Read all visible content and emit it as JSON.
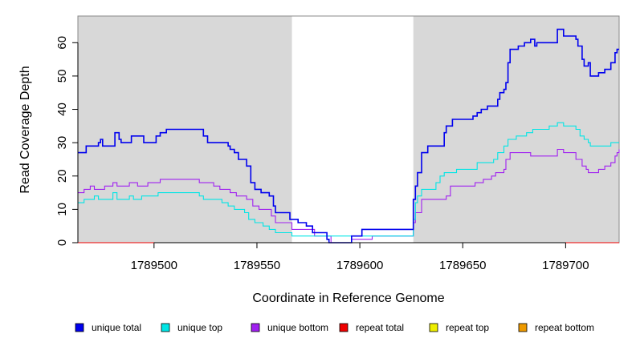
{
  "chart_data": {
    "type": "line",
    "xlabel": "Coordinate in Reference Genome",
    "ylabel": "Read Coverage Depth",
    "xlim": [
      1789463,
      1789726
    ],
    "ylim": [
      0,
      68
    ],
    "xticks": [
      1789500,
      1789550,
      1789600,
      1789650,
      1789700
    ],
    "yticks": [
      0,
      10,
      20,
      30,
      40,
      50,
      60
    ],
    "shaded_regions": [
      [
        1789463,
        1789567
      ],
      [
        1789626,
        1789726
      ]
    ],
    "shade_color": "#d8d8d8",
    "series": [
      {
        "name": "unique total",
        "color": "#0000ee",
        "points": [
          [
            1789463,
            27
          ],
          [
            1789467,
            29
          ],
          [
            1789473,
            30
          ],
          [
            1789474,
            31
          ],
          [
            1789475,
            29
          ],
          [
            1789481,
            33
          ],
          [
            1789483,
            31
          ],
          [
            1789484,
            30
          ],
          [
            1789489,
            32
          ],
          [
            1789495,
            30
          ],
          [
            1789501,
            32
          ],
          [
            1789503,
            33
          ],
          [
            1789506,
            34
          ],
          [
            1789522,
            34
          ],
          [
            1789524,
            32
          ],
          [
            1789526,
            30
          ],
          [
            1789536,
            29
          ],
          [
            1789537,
            28
          ],
          [
            1789539,
            27
          ],
          [
            1789541,
            25
          ],
          [
            1789545,
            23
          ],
          [
            1789547,
            18
          ],
          [
            1789549,
            16
          ],
          [
            1789552,
            15
          ],
          [
            1789556,
            14
          ],
          [
            1789558,
            11
          ],
          [
            1789559,
            9
          ],
          [
            1789566,
            7
          ],
          [
            1789570,
            6
          ],
          [
            1789574,
            5
          ],
          [
            1789577,
            3
          ],
          [
            1789580,
            3
          ],
          [
            1789584,
            1
          ],
          [
            1789585,
            0
          ],
          [
            1789593,
            0
          ],
          [
            1789596,
            2
          ],
          [
            1789601,
            4
          ],
          [
            1789620,
            4
          ],
          [
            1789626,
            13
          ],
          [
            1789627,
            17
          ],
          [
            1789628,
            21
          ],
          [
            1789630,
            27
          ],
          [
            1789633,
            29
          ],
          [
            1789641,
            33
          ],
          [
            1789642,
            35
          ],
          [
            1789645,
            37
          ],
          [
            1789655,
            38
          ],
          [
            1789657,
            39
          ],
          [
            1789659,
            40
          ],
          [
            1789662,
            41
          ],
          [
            1789667,
            43
          ],
          [
            1789668,
            45
          ],
          [
            1789670,
            46
          ],
          [
            1789671,
            48
          ],
          [
            1789672,
            54
          ],
          [
            1789673,
            58
          ],
          [
            1789677,
            59
          ],
          [
            1789680,
            60
          ],
          [
            1789683,
            61
          ],
          [
            1789685,
            59
          ],
          [
            1789686,
            60
          ],
          [
            1789696,
            64
          ],
          [
            1789699,
            62
          ],
          [
            1789705,
            61
          ],
          [
            1789706,
            59
          ],
          [
            1789708,
            55
          ],
          [
            1789709,
            53
          ],
          [
            1789711,
            54
          ],
          [
            1789712,
            50
          ],
          [
            1789716,
            51
          ],
          [
            1789719,
            52
          ],
          [
            1789722,
            54
          ],
          [
            1789724,
            57
          ],
          [
            1789725,
            58
          ],
          [
            1789726,
            58
          ]
        ]
      },
      {
        "name": "unique top",
        "color": "#00e5e5",
        "points": [
          [
            1789463,
            12
          ],
          [
            1789466,
            13
          ],
          [
            1789471,
            14
          ],
          [
            1789473,
            13
          ],
          [
            1789478,
            13
          ],
          [
            1789480,
            15
          ],
          [
            1789482,
            13
          ],
          [
            1789488,
            14
          ],
          [
            1789490,
            13
          ],
          [
            1789494,
            14
          ],
          [
            1789497,
            14
          ],
          [
            1789499,
            14
          ],
          [
            1789502,
            15
          ],
          [
            1789518,
            15
          ],
          [
            1789522,
            14
          ],
          [
            1789524,
            13
          ],
          [
            1789531,
            13
          ],
          [
            1789533,
            12
          ],
          [
            1789536,
            11
          ],
          [
            1789539,
            10
          ],
          [
            1789544,
            9
          ],
          [
            1789546,
            7
          ],
          [
            1789549,
            6
          ],
          [
            1789553,
            5
          ],
          [
            1789556,
            4
          ],
          [
            1789559,
            3
          ],
          [
            1789565,
            3
          ],
          [
            1789567,
            2
          ],
          [
            1789590,
            2
          ],
          [
            1789594,
            2
          ],
          [
            1789626,
            7
          ],
          [
            1789627,
            12
          ],
          [
            1789628,
            14
          ],
          [
            1789630,
            16
          ],
          [
            1789637,
            18
          ],
          [
            1789639,
            20
          ],
          [
            1789641,
            21
          ],
          [
            1789647,
            22
          ],
          [
            1789657,
            24
          ],
          [
            1789665,
            25
          ],
          [
            1789667,
            27
          ],
          [
            1789670,
            29
          ],
          [
            1789672,
            31
          ],
          [
            1789676,
            32
          ],
          [
            1789678,
            32
          ],
          [
            1789681,
            33
          ],
          [
            1789684,
            34
          ],
          [
            1789690,
            34
          ],
          [
            1789692,
            35
          ],
          [
            1789696,
            36
          ],
          [
            1789699,
            35
          ],
          [
            1789705,
            34
          ],
          [
            1789707,
            32
          ],
          [
            1789709,
            31
          ],
          [
            1789711,
            30
          ],
          [
            1789712,
            29
          ],
          [
            1789718,
            29
          ],
          [
            1789722,
            30
          ],
          [
            1789726,
            30
          ]
        ]
      },
      {
        "name": "unique bottom",
        "color": "#a020f0",
        "points": [
          [
            1789463,
            15
          ],
          [
            1789466,
            16
          ],
          [
            1789469,
            17
          ],
          [
            1789471,
            16
          ],
          [
            1789476,
            17
          ],
          [
            1789478,
            17
          ],
          [
            1789480,
            18
          ],
          [
            1789482,
            17
          ],
          [
            1789488,
            18
          ],
          [
            1789492,
            17
          ],
          [
            1789494,
            17
          ],
          [
            1789497,
            18
          ],
          [
            1789499,
            18
          ],
          [
            1789503,
            19
          ],
          [
            1789520,
            19
          ],
          [
            1789522,
            18
          ],
          [
            1789526,
            18
          ],
          [
            1789529,
            17
          ],
          [
            1789532,
            16
          ],
          [
            1789537,
            15
          ],
          [
            1789540,
            14
          ],
          [
            1789545,
            13
          ],
          [
            1789548,
            11
          ],
          [
            1789551,
            10
          ],
          [
            1789554,
            10
          ],
          [
            1789557,
            8
          ],
          [
            1789559,
            6
          ],
          [
            1789565,
            6
          ],
          [
            1789567,
            4
          ],
          [
            1789575,
            4
          ],
          [
            1789578,
            2
          ],
          [
            1789584,
            2
          ],
          [
            1789586,
            0
          ],
          [
            1789593,
            0
          ],
          [
            1789596,
            1
          ],
          [
            1789606,
            2
          ],
          [
            1789626,
            6
          ],
          [
            1789627,
            9
          ],
          [
            1789630,
            13
          ],
          [
            1789642,
            14
          ],
          [
            1789644,
            17
          ],
          [
            1789656,
            18
          ],
          [
            1789660,
            19
          ],
          [
            1789664,
            20
          ],
          [
            1789666,
            21
          ],
          [
            1789670,
            22
          ],
          [
            1789671,
            25
          ],
          [
            1789673,
            27
          ],
          [
            1789683,
            26
          ],
          [
            1789685,
            26
          ],
          [
            1789690,
            26
          ],
          [
            1789696,
            28
          ],
          [
            1789699,
            27
          ],
          [
            1789705,
            25
          ],
          [
            1789708,
            23
          ],
          [
            1789710,
            22
          ],
          [
            1789711,
            21
          ],
          [
            1789716,
            22
          ],
          [
            1789719,
            23
          ],
          [
            1789722,
            24
          ],
          [
            1789724,
            26
          ],
          [
            1789725,
            27
          ],
          [
            1789726,
            28
          ]
        ]
      },
      {
        "name": "repeat total",
        "color": "#ee0000",
        "points": [
          [
            1789463,
            0
          ],
          [
            1789726,
            0
          ]
        ]
      },
      {
        "name": "repeat top",
        "color": "#eeee00",
        "points": [
          [
            1789463,
            0
          ],
          [
            1789726,
            0
          ]
        ]
      },
      {
        "name": "repeat bottom",
        "color": "#ee9a00",
        "points": [
          [
            1789463,
            0
          ],
          [
            1789726,
            0
          ]
        ]
      }
    ],
    "legend": [
      {
        "label": "unique total",
        "color": "#0000ee"
      },
      {
        "label": "unique top",
        "color": "#00e5e5"
      },
      {
        "label": "unique bottom",
        "color": "#a020f0"
      },
      {
        "label": "repeat total",
        "color": "#ee0000"
      },
      {
        "label": "repeat top",
        "color": "#eeee00"
      },
      {
        "label": "repeat bottom",
        "color": "#ee9a00"
      }
    ]
  }
}
